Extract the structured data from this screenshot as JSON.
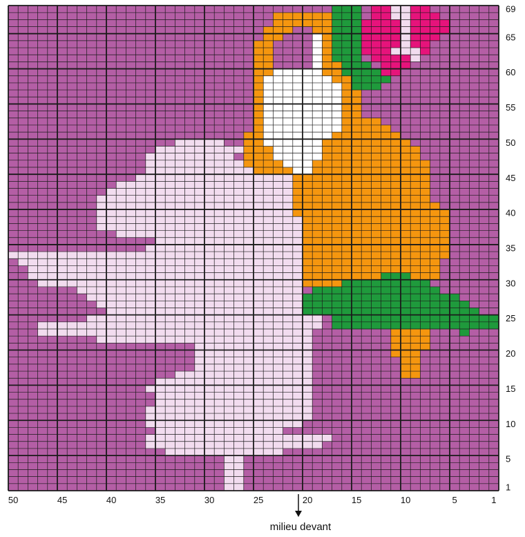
{
  "chart_data": {
    "type": "heatmap",
    "columns": 50,
    "rows": 69,
    "column_numbering": "right-to-left",
    "row_numbering": "bottom-to-top",
    "x_tick_labels": [
      "50",
      "45",
      "40",
      "35",
      "30",
      "25",
      "20",
      "15",
      "10",
      "5",
      "1"
    ],
    "y_tick_labels": [
      "69",
      "65",
      "60",
      "55",
      "50",
      "45",
      "40",
      "35",
      "30",
      "25",
      "20",
      "15",
      "10",
      "5",
      "1"
    ],
    "colors": {
      "background": "#b45ea5",
      "pale_pink": "#f2dcef",
      "orange": "#f5960f",
      "green": "#1f9a3c",
      "magenta": "#e6137b",
      "white": "#ffffff",
      "grid_line": "#1a1a1a"
    },
    "regions": [
      {
        "color": "orange",
        "rows": [
          [
            68,
            23,
            17
          ],
          [
            67,
            23,
            17
          ],
          [
            66,
            24,
            17
          ],
          [
            65,
            24,
            17
          ],
          [
            64,
            25,
            17
          ],
          [
            63,
            25,
            17
          ],
          [
            62,
            25,
            17
          ],
          [
            61,
            25,
            16
          ],
          [
            60,
            25,
            14
          ],
          [
            59,
            25,
            14
          ],
          [
            58,
            25,
            15
          ],
          [
            57,
            25,
            15
          ],
          [
            56,
            25,
            15
          ],
          [
            55,
            25,
            15
          ],
          [
            54,
            25,
            15
          ],
          [
            53,
            25,
            13
          ],
          [
            52,
            25,
            12
          ],
          [
            51,
            26,
            11
          ],
          [
            50,
            26,
            10
          ],
          [
            49,
            26,
            9
          ],
          [
            48,
            26,
            9
          ],
          [
            47,
            26,
            8
          ],
          [
            46,
            26,
            8
          ],
          [
            45,
            23,
            8
          ],
          [
            44,
            23,
            8
          ],
          [
            43,
            23,
            8
          ],
          [
            42,
            23,
            8
          ],
          [
            41,
            23,
            7
          ],
          [
            40,
            23,
            6
          ],
          [
            39,
            23,
            6
          ],
          [
            38,
            21,
            6
          ],
          [
            37,
            21,
            6
          ],
          [
            36,
            21,
            6
          ],
          [
            35,
            21,
            6
          ],
          [
            34,
            21,
            6
          ],
          [
            33,
            21,
            7
          ],
          [
            32,
            21,
            7
          ],
          [
            31,
            21,
            7
          ],
          [
            30,
            21,
            8
          ],
          [
            24,
            11,
            8
          ],
          [
            23,
            11,
            8
          ],
          [
            22,
            11,
            8
          ],
          [
            21,
            11,
            8
          ],
          [
            20,
            11,
            9
          ],
          [
            19,
            10,
            9
          ],
          [
            18,
            10,
            9
          ],
          [
            17,
            10,
            9
          ]
        ]
      },
      {
        "color": "white",
        "rows": [
          [
            66,
            20,
            20
          ],
          [
            65,
            21,
            19
          ],
          [
            64,
            22,
            19
          ],
          [
            63,
            22,
            19
          ],
          [
            62,
            22,
            19
          ],
          [
            61,
            22,
            19
          ],
          [
            60,
            23,
            19
          ],
          [
            59,
            24,
            18
          ],
          [
            58,
            24,
            17
          ],
          [
            57,
            24,
            17
          ],
          [
            56,
            24,
            17
          ],
          [
            55,
            24,
            17
          ],
          [
            54,
            24,
            17
          ],
          [
            53,
            24,
            17
          ],
          [
            52,
            24,
            17
          ],
          [
            51,
            24,
            18
          ],
          [
            50,
            24,
            19
          ],
          [
            49,
            23,
            19
          ],
          [
            48,
            23,
            19
          ],
          [
            47,
            22,
            20
          ],
          [
            46,
            21,
            20
          ]
        ]
      },
      {
        "color": "green",
        "rows": [
          [
            69,
            17,
            15
          ],
          [
            68,
            17,
            15
          ],
          [
            67,
            17,
            15
          ],
          [
            66,
            17,
            15
          ],
          [
            65,
            17,
            15
          ],
          [
            64,
            17,
            15
          ],
          [
            63,
            17,
            15
          ],
          [
            62,
            17,
            15
          ],
          [
            61,
            16,
            14
          ],
          [
            60,
            16,
            12
          ],
          [
            59,
            15,
            12
          ],
          [
            58,
            15,
            13
          ],
          [
            31,
            12,
            10
          ],
          [
            30,
            16,
            8
          ],
          [
            29,
            19,
            7
          ],
          [
            28,
            20,
            5
          ],
          [
            27,
            20,
            4
          ],
          [
            26,
            20,
            3
          ],
          [
            25,
            17,
            1
          ],
          [
            24,
            17,
            1
          ],
          [
            23,
            4,
            4
          ]
        ]
      },
      {
        "color": "magenta",
        "rows": [
          [
            69,
            13,
            12
          ],
          [
            68,
            13,
            12
          ],
          [
            67,
            14,
            11
          ],
          [
            66,
            14,
            11
          ],
          [
            65,
            14,
            11
          ],
          [
            64,
            14,
            11
          ],
          [
            63,
            14,
            11
          ],
          [
            62,
            13,
            10
          ],
          [
            61,
            12,
            10
          ],
          [
            60,
            12,
            11
          ],
          [
            69,
            9,
            8
          ],
          [
            68,
            9,
            7
          ],
          [
            67,
            9,
            6
          ],
          [
            66,
            9,
            6
          ],
          [
            65,
            9,
            7
          ],
          [
            64,
            9,
            8
          ],
          [
            63,
            9,
            8
          ]
        ]
      },
      {
        "color": "pale_pink",
        "rows": [
          [
            69,
            11,
            10
          ],
          [
            68,
            11,
            10
          ],
          [
            67,
            10,
            10
          ],
          [
            66,
            10,
            10
          ],
          [
            65,
            10,
            10
          ],
          [
            64,
            10,
            10
          ],
          [
            63,
            11,
            9
          ],
          [
            62,
            9,
            9
          ],
          [
            50,
            33,
            29
          ],
          [
            49,
            35,
            27
          ],
          [
            48,
            36,
            28
          ],
          [
            47,
            36,
            27
          ],
          [
            46,
            36,
            26
          ],
          [
            45,
            37,
            22
          ],
          [
            44,
            39,
            22
          ],
          [
            43,
            40,
            22
          ],
          [
            42,
            41,
            22
          ],
          [
            41,
            41,
            22
          ],
          [
            40,
            41,
            22
          ],
          [
            39,
            41,
            21
          ],
          [
            38,
            41,
            21
          ],
          [
            37,
            39,
            21
          ],
          [
            36,
            35,
            21
          ],
          [
            35,
            36,
            21
          ],
          [
            34,
            50,
            21
          ],
          [
            33,
            49,
            21
          ],
          [
            32,
            48,
            21
          ],
          [
            31,
            48,
            21
          ],
          [
            30,
            47,
            21
          ],
          [
            29,
            43,
            21
          ],
          [
            28,
            42,
            21
          ],
          [
            27,
            41,
            21
          ],
          [
            26,
            40,
            21
          ],
          [
            25,
            42,
            19
          ],
          [
            24,
            47,
            19
          ],
          [
            23,
            47,
            20
          ],
          [
            22,
            41,
            20
          ],
          [
            21,
            31,
            20
          ],
          [
            20,
            31,
            20
          ],
          [
            19,
            31,
            20
          ],
          [
            18,
            31,
            20
          ],
          [
            17,
            33,
            20
          ],
          [
            16,
            35,
            20
          ],
          [
            15,
            36,
            20
          ],
          [
            14,
            35,
            20
          ],
          [
            13,
            35,
            20
          ],
          [
            12,
            36,
            20
          ],
          [
            11,
            36,
            20
          ],
          [
            10,
            36,
            21
          ],
          [
            9,
            35,
            23
          ],
          [
            8,
            36,
            18
          ],
          [
            7,
            36,
            19
          ],
          [
            6,
            34,
            23
          ],
          [
            5,
            28,
            27
          ],
          [
            4,
            28,
            27
          ],
          [
            3,
            28,
            27
          ],
          [
            2,
            28,
            27
          ],
          [
            1,
            28,
            27
          ]
        ]
      }
    ],
    "background_cut_rows": [
      [
        66,
        21,
        20
      ],
      [
        65,
        22,
        20
      ],
      [
        64,
        23,
        20
      ],
      [
        63,
        23,
        20
      ],
      [
        62,
        23,
        20
      ],
      [
        61,
        23,
        20
      ]
    ]
  },
  "annotation": {
    "label": "milieu devant",
    "column": 21
  }
}
